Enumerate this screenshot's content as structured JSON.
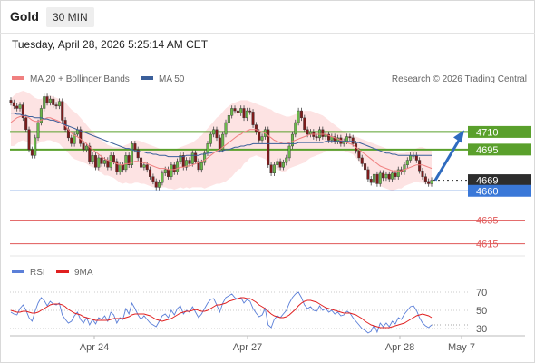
{
  "header": {
    "title": "Gold",
    "timeframe": "30 MIN",
    "timestamp": "Tuesday, April 28, 2026 5:25:14 AM CET",
    "copyright": "Research © 2026 Trading Central"
  },
  "colors": {
    "bollinger": "#f08080",
    "ma50": "#3b5f9a",
    "support_resistance": "#5aa02c",
    "current": "#2d2d2d",
    "pivot": "#3a78d8",
    "target": "#e05858",
    "rsi": "#5b7fd8",
    "rsi_ma": "#e02020",
    "arrow": "#2f6bbf"
  },
  "chart_data": [
    {
      "type": "candlestick",
      "title": "Gold",
      "legend": [
        "MA 20 + Bollinger Bands",
        "MA 50"
      ],
      "x_ticks": [
        "Apr 24",
        "Apr 27",
        "Apr 28",
        "May 7"
      ],
      "ylim": [
        4605,
        4745
      ],
      "levels": [
        {
          "label": "4710",
          "value": 4710,
          "kind": "resistance"
        },
        {
          "label": "4695",
          "value": 4695,
          "kind": "resistance"
        },
        {
          "label": "4669",
          "value": 4669,
          "kind": "current"
        },
        {
          "label": "4660",
          "value": 4660,
          "kind": "pivot"
        },
        {
          "label": "4635",
          "value": 4635,
          "kind": "target"
        },
        {
          "label": "4615",
          "value": 4615,
          "kind": "target"
        }
      ],
      "close": [
        4735,
        4732,
        4730,
        4733,
        4722,
        4712,
        4695,
        4690,
        4705,
        4718,
        4730,
        4740,
        4735,
        4738,
        4733,
        4732,
        4736,
        4720,
        4712,
        4705,
        4700,
        4708,
        4712,
        4700,
        4695,
        4698,
        4685,
        4690,
        4680,
        4688,
        4683,
        4686,
        4680,
        4690,
        4685,
        4676,
        4682,
        4678,
        4690,
        4682,
        4700,
        4695,
        4688,
        4680,
        4682,
        4678,
        4672,
        4668,
        4663,
        4667,
        4675,
        4678,
        4672,
        4682,
        4676,
        4685,
        4690,
        4680,
        4686,
        4683,
        4692,
        4685,
        4678,
        4684,
        4692,
        4700,
        4708,
        4712,
        4705,
        4695,
        4708,
        4718,
        4724,
        4730,
        4728,
        4726,
        4730,
        4722,
        4728,
        4727,
        4716,
        4710,
        4703,
        4706,
        4712,
        4682,
        4675,
        4682,
        4685,
        4680,
        4684,
        4688,
        4698,
        4708,
        4718,
        4728,
        4722,
        4712,
        4708,
        4710,
        4706,
        4705,
        4712,
        4706,
        4708,
        4703,
        4706,
        4702,
        4705,
        4700,
        4702,
        4706,
        4705,
        4700,
        4694,
        4688,
        4683,
        4678,
        4670,
        4667,
        4674,
        4666,
        4675,
        4671,
        4674,
        4670,
        4675,
        4672,
        4678,
        4676,
        4682,
        4686,
        4690,
        4690,
        4686,
        4677,
        4672,
        4668,
        4666,
        4669
      ],
      "ma20": [
        4718,
        4720,
        4722,
        4723,
        4724,
        4723,
        4722,
        4720,
        4719,
        4719,
        4720,
        4721,
        4722,
        4722,
        4721,
        4720,
        4719,
        4717,
        4715,
        4712,
        4709,
        4707,
        4706,
        4704,
        4702,
        4700,
        4697,
        4695,
        4693,
        4691,
        4689,
        4687,
        4686,
        4685,
        4684,
        4683,
        4682,
        4682,
        4683,
        4683,
        4684,
        4685,
        4685,
        4684,
        4684,
        4683,
        4682,
        4681,
        4680,
        4679,
        4679,
        4679,
        4678,
        4678,
        4678,
        4679,
        4680,
        4680,
        4681,
        4681,
        4682,
        4683,
        4684,
        4685,
        4686,
        4688,
        4690,
        4692,
        4694,
        4695,
        4697,
        4699,
        4701,
        4703,
        4705,
        4707,
        4708,
        4710,
        4711,
        4712,
        4712,
        4712,
        4711,
        4710,
        4709,
        4707,
        4705,
        4703,
        4702,
        4701,
        4700,
        4700,
        4701,
        4702,
        4703,
        4704,
        4705,
        4706,
        4707,
        4708,
        4708,
        4708,
        4708,
        4708,
        4708,
        4707,
        4706,
        4705,
        4704,
        4703,
        4702,
        4701,
        4700,
        4699,
        4697,
        4695,
        4693,
        4691,
        4689,
        4687,
        4685,
        4683,
        4681,
        4680,
        4679,
        4678,
        4677,
        4677,
        4677,
        4677,
        4678,
        4679,
        4680,
        4681,
        4682,
        4682,
        4682,
        4681,
        4680,
        4679
      ],
      "bb_upper": [
        4738,
        4741,
        4743,
        4744,
        4745,
        4744,
        4743,
        4741,
        4739,
        4738,
        4738,
        4740,
        4741,
        4741,
        4740,
        4739,
        4738,
        4737,
        4735,
        4732,
        4729,
        4727,
        4725,
        4722,
        4719,
        4716,
        4713,
        4710,
        4707,
        4705,
        4703,
        4701,
        4699,
        4698,
        4697,
        4697,
        4697,
        4698,
        4699,
        4700,
        4702,
        4703,
        4703,
        4702,
        4701,
        4700,
        4699,
        4698,
        4697,
        4696,
        4695,
        4695,
        4694,
        4694,
        4695,
        4696,
        4697,
        4698,
        4699,
        4700,
        4701,
        4703,
        4705,
        4707,
        4710,
        4713,
        4716,
        4719,
        4722,
        4724,
        4727,
        4730,
        4732,
        4734,
        4735,
        4736,
        4737,
        4737,
        4737,
        4736,
        4735,
        4734,
        4733,
        4732,
        4731,
        4730,
        4729,
        4727,
        4726,
        4725,
        4724,
        4723,
        4723,
        4724,
        4725,
        4726,
        4727,
        4728,
        4728,
        4728,
        4727,
        4726,
        4725,
        4724,
        4722,
        4720,
        4718,
        4716,
        4714,
        4712,
        4710,
        4709,
        4708,
        4707,
        4706,
        4705,
        4704,
        4703,
        4702,
        4701,
        4700,
        4699,
        4698,
        4697,
        4696,
        4695,
        4694,
        4693,
        4692,
        4692,
        4692,
        4693,
        4694,
        4695,
        4696,
        4697,
        4697,
        4696,
        4695,
        4694
      ],
      "bb_lower": [
        4698,
        4698,
        4700,
        4702,
        4703,
        4702,
        4700,
        4699,
        4699,
        4700,
        4702,
        4702,
        4703,
        4703,
        4702,
        4701,
        4700,
        4697,
        4695,
        4692,
        4689,
        4687,
        4686,
        4685,
        4684,
        4683,
        4681,
        4680,
        4679,
        4677,
        4675,
        4673,
        4673,
        4672,
        4671,
        4669,
        4667,
        4666,
        4667,
        4666,
        4666,
        4667,
        4667,
        4666,
        4666,
        4665,
        4664,
        4663,
        4663,
        4662,
        4663,
        4663,
        4662,
        4662,
        4661,
        4662,
        4663,
        4662,
        4663,
        4662,
        4663,
        4663,
        4663,
        4663,
        4662,
        4663,
        4664,
        4665,
        4666,
        4666,
        4667,
        4668,
        4670,
        4672,
        4675,
        4678,
        4679,
        4683,
        4685,
        4688,
        4689,
        4690,
        4689,
        4688,
        4687,
        4684,
        4681,
        4679,
        4678,
        4677,
        4676,
        4677,
        4679,
        4680,
        4681,
        4682,
        4683,
        4684,
        4686,
        4688,
        4689,
        4690,
        4691,
        4692,
        4694,
        4694,
        4694,
        4694,
        4694,
        4694,
        4694,
        4693,
        4692,
        4691,
        4688,
        4685,
        4682,
        4679,
        4676,
        4673,
        4670,
        4667,
        4664,
        4663,
        4662,
        4661,
        4660,
        4661,
        4662,
        4662,
        4664,
        4665,
        4666,
        4667,
        4668,
        4667,
        4667,
        4666,
        4665,
        4664
      ],
      "ma50": [
        4726,
        4726,
        4725,
        4725,
        4724,
        4724,
        4723,
        4723,
        4722,
        4722,
        4722,
        4721,
        4721,
        4720,
        4720,
        4719,
        4718,
        4717,
        4716,
        4715,
        4714,
        4713,
        4712,
        4711,
        4710,
        4709,
        4708,
        4707,
        4706,
        4705,
        4704,
        4703,
        4702,
        4701,
        4700,
        4699,
        4698,
        4697,
        4696,
        4696,
        4695,
        4694,
        4694,
        4693,
        4693,
        4692,
        4692,
        4691,
        4691,
        4690,
        4690,
        4690,
        4689,
        4689,
        4689,
        4689,
        4689,
        4689,
        4690,
        4690,
        4690,
        4690,
        4690,
        4691,
        4691,
        4692,
        4692,
        4693,
        4693,
        4694,
        4694,
        4695,
        4695,
        4696,
        4697,
        4697,
        4698,
        4698,
        4699,
        4699,
        4700,
        4700,
        4700,
        4700,
        4700,
        4700,
        4700,
        4700,
        4700,
        4700,
        4700,
        4700,
        4700,
        4700,
        4700,
        4701,
        4701,
        4701,
        4701,
        4701,
        4701,
        4701,
        4701,
        4701,
        4702,
        4702,
        4702,
        4702,
        4702,
        4702,
        4702,
        4702,
        4702,
        4702,
        4701,
        4701,
        4700,
        4699,
        4698,
        4697,
        4696,
        4695,
        4694,
        4693,
        4692,
        4692,
        4691,
        4691,
        4690,
        4690,
        4690,
        4690,
        4690,
        4690,
        4690,
        4690,
        4690,
        4690,
        4690,
        4690
      ]
    },
    {
      "type": "line",
      "title": "RSI",
      "legend": [
        "RSI",
        "9MA"
      ],
      "yticks": [
        70,
        50,
        30
      ],
      "ylim": [
        20,
        80
      ],
      "rsi": [
        48,
        46,
        45,
        52,
        56,
        50,
        42,
        38,
        49,
        58,
        64,
        61,
        55,
        60,
        57,
        56,
        58,
        45,
        40,
        36,
        38,
        44,
        48,
        40,
        36,
        42,
        34,
        40,
        35,
        42,
        40,
        44,
        38,
        48,
        45,
        36,
        42,
        40,
        52,
        46,
        58,
        52,
        45,
        40,
        44,
        40,
        36,
        34,
        32,
        38,
        44,
        46,
        42,
        50,
        45,
        52,
        55,
        46,
        50,
        48,
        54,
        48,
        42,
        46,
        52,
        58,
        62,
        63,
        56,
        48,
        58,
        64,
        66,
        68,
        64,
        62,
        64,
        58,
        62,
        60,
        52,
        47,
        43,
        45,
        52,
        34,
        31,
        40,
        44,
        42,
        46,
        50,
        58,
        64,
        68,
        70,
        64,
        56,
        52,
        54,
        50,
        49,
        55,
        50,
        52,
        48,
        50,
        46,
        48,
        44,
        45,
        49,
        47,
        42,
        38,
        34,
        30,
        28,
        25,
        27,
        34,
        26,
        36,
        32,
        36,
        32,
        38,
        35,
        42,
        40,
        46,
        50,
        54,
        55,
        50,
        42,
        36,
        33,
        31,
        34
      ],
      "rsi_ma": [
        50,
        49,
        48,
        48,
        49,
        49,
        48,
        47,
        47,
        48,
        50,
        52,
        54,
        56,
        57,
        57,
        57,
        56,
        54,
        51,
        49,
        47,
        46,
        45,
        43,
        42,
        41,
        40,
        39,
        39,
        39,
        39,
        39,
        40,
        41,
        41,
        41,
        41,
        42,
        43,
        45,
        46,
        46,
        46,
        46,
        45,
        44,
        42,
        40,
        39,
        38,
        39,
        40,
        41,
        43,
        45,
        47,
        48,
        49,
        49,
        50,
        51,
        50,
        49,
        49,
        50,
        52,
        54,
        56,
        56,
        57,
        58,
        60,
        61,
        62,
        63,
        64,
        64,
        63,
        63,
        61,
        59,
        56,
        54,
        52,
        49,
        46,
        44,
        43,
        42,
        42,
        43,
        45,
        48,
        51,
        55,
        58,
        60,
        61,
        61,
        60,
        59,
        57,
        55,
        53,
        52,
        51,
        50,
        49,
        48,
        47,
        47,
        47,
        46,
        45,
        43,
        41,
        38,
        36,
        34,
        33,
        32,
        31,
        31,
        31,
        31,
        32,
        33,
        34,
        35,
        36,
        38,
        40,
        42,
        44,
        45,
        46,
        45,
        44,
        42
      ]
    }
  ]
}
